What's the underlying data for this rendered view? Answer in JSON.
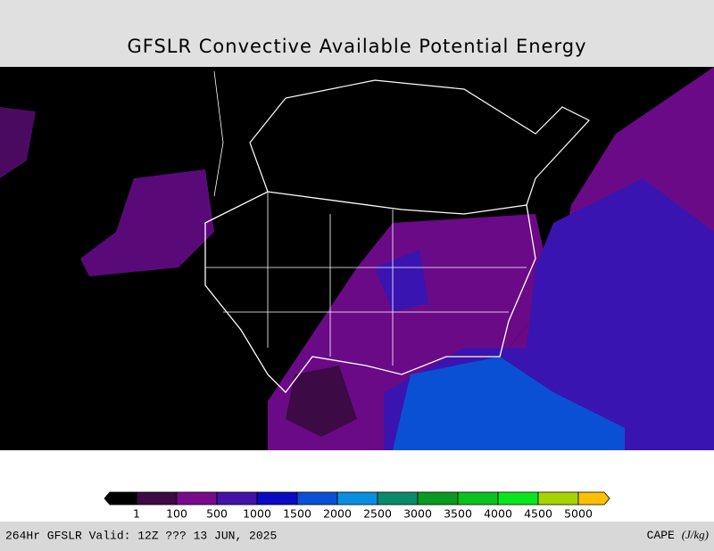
{
  "header": {
    "title": "GFSLR Convective Available Potential Energy"
  },
  "legend": {
    "colors": [
      "#000000",
      "#3c0a44",
      "#7a0a8c",
      "#4412a6",
      "#0a0ac4",
      "#0a50d4",
      "#0a8ee0",
      "#0a8a6a",
      "#0a9a22",
      "#0ac21e",
      "#0ae61e",
      "#a6d400",
      "#ffc000"
    ],
    "labels": [
      "1",
      "100",
      "500",
      "1000",
      "1500",
      "2000",
      "2500",
      "3000",
      "3500",
      "4000",
      "4500",
      "5000"
    ]
  },
  "footer": {
    "left": "264Hr GFSLR Valid: 12Z ??? 13 JUN, 2025",
    "right_name": "CAPE",
    "right_unit": "(J/kg)"
  }
}
